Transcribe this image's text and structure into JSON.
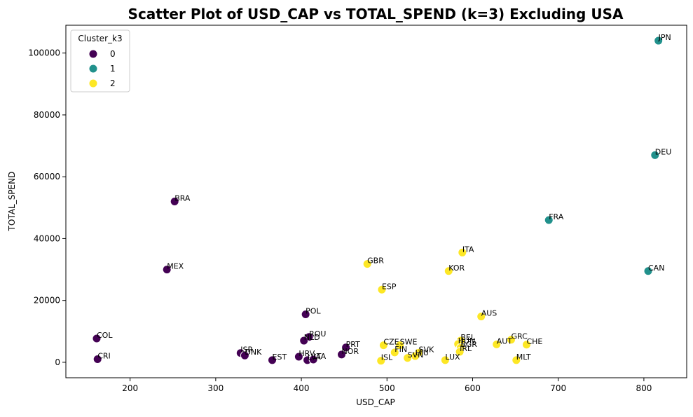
{
  "chart_data": {
    "type": "scatter",
    "title": "Scatter Plot of USD_CAP vs TOTAL_SPEND (k=3) Excluding USA",
    "xlabel": "USD_CAP",
    "ylabel": "TOTAL_SPEND",
    "xlim": [
      125,
      850
    ],
    "ylim": [
      -5000,
      109000
    ],
    "xticks": [
      200,
      300,
      400,
      500,
      600,
      700,
      800
    ],
    "yticks": [
      0,
      20000,
      40000,
      60000,
      80000,
      100000
    ],
    "legend": {
      "title": "Cluster_k3",
      "position": "top-left",
      "entries": [
        "0",
        "1",
        "2"
      ]
    },
    "colors": {
      "0": "#440154",
      "1": "#21918c",
      "2": "#fde725"
    },
    "points": [
      {
        "label": "JPN",
        "x": 817,
        "y": 104000,
        "cluster": 1
      },
      {
        "label": "DEU",
        "x": 813,
        "y": 67000,
        "cluster": 1
      },
      {
        "label": "FRA",
        "x": 689,
        "y": 46000,
        "cluster": 1
      },
      {
        "label": "CAN",
        "x": 805,
        "y": 29500,
        "cluster": 1
      },
      {
        "label": "BRA",
        "x": 252,
        "y": 52000,
        "cluster": 0
      },
      {
        "label": "MEX",
        "x": 243,
        "y": 30000,
        "cluster": 0
      },
      {
        "label": "POL",
        "x": 405,
        "y": 15500,
        "cluster": 0
      },
      {
        "label": "COL",
        "x": 161,
        "y": 7700,
        "cluster": 0
      },
      {
        "label": "CRI",
        "x": 162,
        "y": 1000,
        "cluster": 0
      },
      {
        "label": "ROU",
        "x": 409,
        "y": 8200,
        "cluster": 0
      },
      {
        "label": "NLD",
        "x": 403,
        "y": 7000,
        "cluster": 0
      },
      {
        "label": "PRT",
        "x": 452,
        "y": 4800,
        "cluster": 0
      },
      {
        "label": "NOR",
        "x": 447,
        "y": 2500,
        "cluster": 0
      },
      {
        "label": "ISR",
        "x": 329,
        "y": 3000,
        "cluster": 0
      },
      {
        "label": "DNK",
        "x": 334,
        "y": 2200,
        "cluster": 0
      },
      {
        "label": "EST",
        "x": 366,
        "y": 700,
        "cluster": 0
      },
      {
        "label": "HRV",
        "x": 397,
        "y": 1800,
        "cluster": 0
      },
      {
        "label": "LVA",
        "x": 407,
        "y": 700,
        "cluster": 0
      },
      {
        "label": "LTA",
        "x": 414,
        "y": 900,
        "cluster": 0
      },
      {
        "label": "ITA",
        "x": 588,
        "y": 35500,
        "cluster": 2
      },
      {
        "label": "GBR",
        "x": 477,
        "y": 31800,
        "cluster": 2
      },
      {
        "label": "KOR",
        "x": 572,
        "y": 29500,
        "cluster": 2
      },
      {
        "label": "ESP",
        "x": 494,
        "y": 23500,
        "cluster": 2
      },
      {
        "label": "AUS",
        "x": 610,
        "y": 14800,
        "cluster": 2
      },
      {
        "label": "BEL",
        "x": 586,
        "y": 7000,
        "cluster": 2
      },
      {
        "label": "HUN",
        "x": 583,
        "y": 5900,
        "cluster": 2
      },
      {
        "label": "GRC",
        "x": 645,
        "y": 7300,
        "cluster": 2
      },
      {
        "label": "AUT",
        "x": 628,
        "y": 5800,
        "cluster": 2
      },
      {
        "label": "CHE",
        "x": 663,
        "y": 5700,
        "cluster": 2
      },
      {
        "label": "BGR",
        "x": 586,
        "y": 4700,
        "cluster": 2
      },
      {
        "label": "IRL",
        "x": 585,
        "y": 3400,
        "cluster": 2
      },
      {
        "label": "CZE",
        "x": 496,
        "y": 5500,
        "cluster": 2
      },
      {
        "label": "SWE",
        "x": 515,
        "y": 5500,
        "cluster": 2
      },
      {
        "label": "FIN",
        "x": 509,
        "y": 3200,
        "cluster": 2
      },
      {
        "label": "SVK",
        "x": 537,
        "y": 3100,
        "cluster": 2
      },
      {
        "label": "LTU",
        "x": 533,
        "y": 2000,
        "cluster": 2
      },
      {
        "label": "SVN",
        "x": 524,
        "y": 1400,
        "cluster": 2
      },
      {
        "label": "ISL",
        "x": 493,
        "y": 500,
        "cluster": 2
      },
      {
        "label": "LUX",
        "x": 568,
        "y": 700,
        "cluster": 2
      },
      {
        "label": "MLT",
        "x": 651,
        "y": 700,
        "cluster": 2
      }
    ]
  }
}
